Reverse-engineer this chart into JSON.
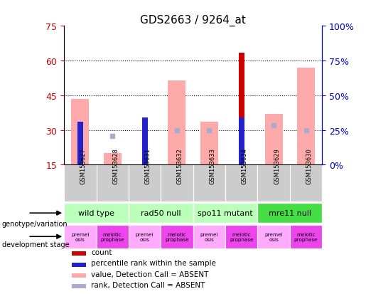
{
  "title": "GDS2663 / 9264_at",
  "samples": [
    "GSM153627",
    "GSM153628",
    "GSM153631",
    "GSM153632",
    "GSM153633",
    "GSM153634",
    "GSM153629",
    "GSM153630"
  ],
  "ylim_left": [
    15,
    75
  ],
  "ylim_right": [
    0,
    100
  ],
  "yticks_left": [
    15,
    30,
    45,
    60,
    75
  ],
  "yticks_right": [
    0,
    25,
    50,
    75,
    100
  ],
  "yright_labels": [
    "0%",
    "25%",
    "50%",
    "75%",
    "100%"
  ],
  "count_values": [
    null,
    null,
    35.5,
    null,
    null,
    63.5,
    null,
    null
  ],
  "percentile_rank": [
    33.5,
    null,
    35.5,
    null,
    null,
    35.5,
    null,
    null
  ],
  "value_absent": [
    43.5,
    20.0,
    null,
    51.5,
    33.5,
    null,
    37.0,
    57.0
  ],
  "rank_absent": [
    null,
    27.5,
    null,
    30.0,
    30.0,
    null,
    32.0,
    30.0
  ],
  "count_color": "#cc0000",
  "percentile_color": "#2222cc",
  "value_absent_color": "#ffaaaa",
  "rank_absent_color": "#aaaacc",
  "bar_bottom": 15,
  "wide_bar_width": 0.55,
  "narrow_bar_width": 0.18,
  "genotype_groups": [
    {
      "label": "wild type",
      "start": 0,
      "end": 2,
      "color": "#bbffbb"
    },
    {
      "label": "rad50 null",
      "start": 2,
      "end": 4,
      "color": "#bbffbb"
    },
    {
      "label": "spo11 mutant",
      "start": 4,
      "end": 6,
      "color": "#bbffbb"
    },
    {
      "label": "mre11 null",
      "start": 6,
      "end": 8,
      "color": "#44dd44"
    }
  ],
  "dev_stage_labels": [
    "premei\nosis",
    "meiotic\nprophase",
    "premei\nosis",
    "meiotic\nprophase",
    "premei\nosis",
    "meiotic\nprophase",
    "premei\nosis",
    "meiotic\nprophase"
  ],
  "dev_stage_colors": [
    "#ffaaff",
    "#ee44ee",
    "#ffaaff",
    "#ee44ee",
    "#ffaaff",
    "#ee44ee",
    "#ffaaff",
    "#ee44ee"
  ],
  "legend_items": [
    {
      "color": "#cc0000",
      "label": "count"
    },
    {
      "color": "#2222cc",
      "label": "percentile rank within the sample"
    },
    {
      "color": "#ffaaaa",
      "label": "value, Detection Call = ABSENT"
    },
    {
      "color": "#aaaacc",
      "label": "rank, Detection Call = ABSENT"
    }
  ],
  "grid_yticks": [
    30,
    45,
    60
  ],
  "grid_color": "black",
  "grid_linestyle": ":",
  "background_color": "#ffffff",
  "title_fontsize": 11,
  "axis_color_left": "#cc0000",
  "axis_color_right": "#0000cc",
  "sample_box_color": "#cccccc",
  "figsize": [
    5.15,
    4.14
  ],
  "dpi": 100
}
